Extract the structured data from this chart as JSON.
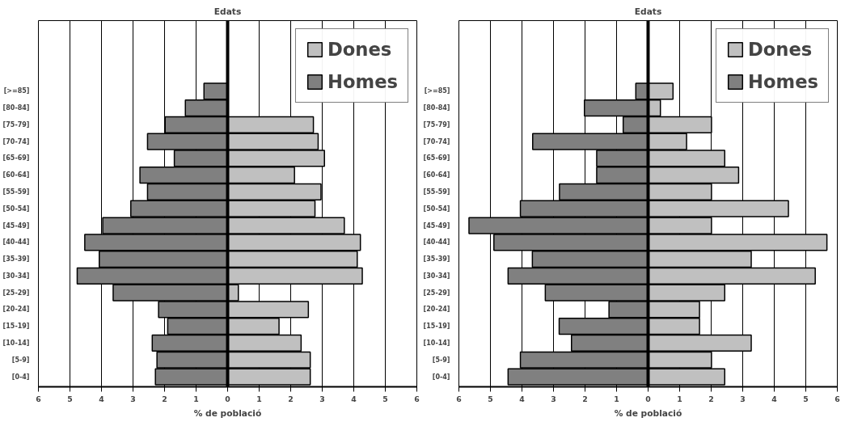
{
  "chart_data": [
    {
      "type": "bar",
      "orientation": "horizontal",
      "title": "Edats",
      "xlabel": "% de població",
      "categories": [
        "[>=85]",
        "[80-84]",
        "[75-79]",
        "[70-74]",
        "[65-69]",
        "[60-64]",
        "[55-59]",
        "[50-54]",
        "[45-49]",
        "[40-44]",
        "[35-39]",
        "[30-34]",
        "[25-29]",
        "[20-24]",
        "[15-19]",
        "[10-14]",
        "[5-9]",
        "[0-4]"
      ],
      "series": [
        {
          "name": "Dones",
          "color": "#c0c0c0",
          "values": [
            null,
            null,
            2.72,
            2.87,
            3.07,
            2.12,
            2.96,
            2.77,
            3.7,
            4.21,
            4.11,
            4.27,
            0.34,
            2.56,
            1.63,
            2.33,
            2.62,
            2.62
          ]
        },
        {
          "name": "Homes",
          "color": "#808080",
          "values": [
            -0.75,
            -1.34,
            -1.98,
            -2.54,
            -1.69,
            -2.78,
            -2.54,
            -3.07,
            -3.96,
            -4.53,
            -4.07,
            -4.77,
            -3.63,
            -2.19,
            -1.9,
            -2.39,
            -2.24,
            -2.29
          ]
        }
      ],
      "xlim": [
        -6,
        6
      ],
      "xticks": [
        {
          "value": -6,
          "label": "6"
        },
        {
          "value": -5,
          "label": "5"
        },
        {
          "value": -4,
          "label": "4"
        },
        {
          "value": -3,
          "label": "3"
        },
        {
          "value": -2,
          "label": "2"
        },
        {
          "value": -1,
          "label": "1"
        },
        0,
        1,
        2,
        3,
        4,
        5,
        6
      ],
      "grid": "x",
      "legend": "top right",
      "stacked": true
    },
    {
      "type": "bar",
      "orientation": "horizontal",
      "title": "Edats",
      "xlabel": "% de població",
      "categories": [
        "[>=85]",
        "[80-84]",
        "[75-79]",
        "[70-74]",
        "[65-69]",
        "[60-64]",
        "[55-59]",
        "[50-54]",
        "[45-49]",
        "[40-44]",
        "[35-39]",
        "[30-34]",
        "[25-29]",
        "[20-24]",
        "[15-19]",
        "[10-14]",
        "[5-9]",
        "[0-4]"
      ],
      "series": [
        {
          "name": "Dones",
          "color": "#c0c0c0",
          "values": [
            0.79,
            0.39,
            2.01,
            1.22,
            2.43,
            2.87,
            2.01,
            4.45,
            2.01,
            5.67,
            3.27,
            5.3,
            2.43,
            1.63,
            1.63,
            3.27,
            2.01,
            2.43
          ]
        },
        {
          "name": "Homes",
          "color": "#808080",
          "values": [
            -0.39,
            -2.02,
            -0.79,
            -3.66,
            -1.63,
            -1.63,
            -2.81,
            -4.05,
            -5.68,
            -4.89,
            -3.67,
            -4.44,
            -3.26,
            -1.24,
            -2.82,
            -2.43,
            -4.05,
            -4.44
          ]
        }
      ],
      "xlim": [
        -6,
        6
      ],
      "xticks": [
        {
          "value": -6,
          "label": "6"
        },
        {
          "value": -5,
          "label": "5"
        },
        {
          "value": -4,
          "label": "4"
        },
        {
          "value": -3,
          "label": "3"
        },
        {
          "value": -2,
          "label": "2"
        },
        {
          "value": -1,
          "label": "1"
        },
        0,
        1,
        2,
        3,
        4,
        5,
        6
      ],
      "grid": "x",
      "legend": "top right",
      "stacked": true
    }
  ]
}
